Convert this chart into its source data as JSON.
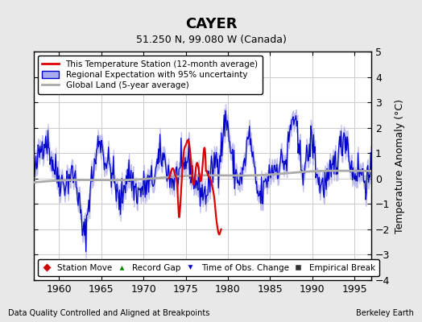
{
  "title": "CAYER",
  "subtitle": "51.250 N, 99.080 W (Canada)",
  "ylabel": "Temperature Anomaly (°C)",
  "xlabel_left": "Data Quality Controlled and Aligned at Breakpoints",
  "xlabel_right": "Berkeley Earth",
  "ylim": [
    -4,
    5
  ],
  "xlim": [
    1957,
    1997
  ],
  "xticks": [
    1960,
    1965,
    1970,
    1975,
    1980,
    1985,
    1990,
    1995
  ],
  "yticks": [
    -4,
    -3,
    -2,
    -1,
    0,
    1,
    2,
    3,
    4,
    5
  ],
  "bg_color": "#e8e8e8",
  "plot_bg_color": "#ffffff",
  "grid_color": "#cccccc",
  "red_line_color": "#dd0000",
  "blue_line_color": "#0000cc",
  "blue_fill_color": "#aaaaee",
  "gray_line_color": "#aaaaaa",
  "legend1_labels": [
    "This Temperature Station (12-month average)",
    "Regional Expectation with 95% uncertainty",
    "Global Land (5-year average)"
  ],
  "legend2_labels": [
    "Station Move",
    "Record Gap",
    "Time of Obs. Change",
    "Empirical Break"
  ],
  "legend2_colors": [
    "#cc0000",
    "#008800",
    "#0000cc",
    "#333333"
  ],
  "legend2_markers": [
    "D",
    "^",
    "v",
    "s"
  ]
}
